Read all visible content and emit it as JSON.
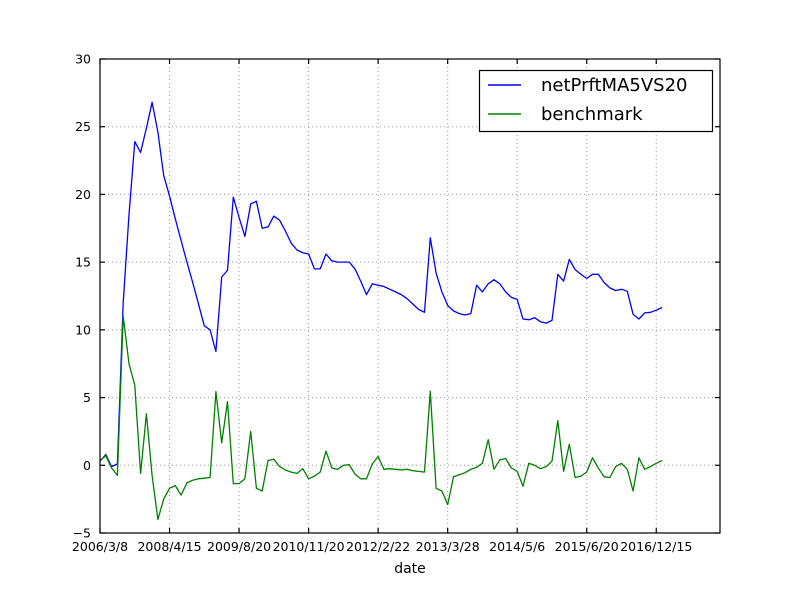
{
  "figure": {
    "background": "#ffffff",
    "axes_background": "#ffffff",
    "axis_color": "#000000",
    "grid_color": "#9a9a9a"
  },
  "chart_data": {
    "type": "line",
    "title": "",
    "xlabel": "date",
    "ylabel": "",
    "grid": true,
    "legend_position": "upper right",
    "xlim": [
      0,
      107
    ],
    "ylim": [
      -5,
      30
    ],
    "yticks": [
      -5,
      0,
      5,
      10,
      15,
      20,
      25,
      30
    ],
    "ytick_labels": [
      "−5",
      "0",
      "5",
      "10",
      "15",
      "20",
      "25",
      "30"
    ],
    "xtick_positions": [
      0,
      12,
      24,
      36,
      48,
      60,
      72,
      84,
      96
    ],
    "xtick_labels": [
      "2006/3/8",
      "2008/4/15",
      "2009/8/20",
      "2010/11/20",
      "2012/2/22",
      "2013/3/28",
      "2014/5/6",
      "2015/6/20",
      "2016/12/15"
    ],
    "series": [
      {
        "name": "netPrftMA5VS20",
        "color": "#0000ff",
        "values": [
          0.3,
          0.8,
          -0.1,
          0.1,
          12.0,
          18.5,
          23.9,
          23.1,
          24.9,
          26.8,
          24.6,
          21.4,
          19.9,
          18.2,
          16.6,
          15.0,
          13.5,
          11.9,
          10.3,
          10.0,
          8.4,
          13.9,
          14.4,
          19.8,
          18.3,
          16.9,
          19.3,
          19.5,
          17.5,
          17.6,
          18.4,
          18.1,
          17.3,
          16.4,
          15.9,
          15.7,
          15.6,
          14.5,
          14.5,
          15.6,
          15.1,
          15.0,
          15.0,
          15.0,
          14.5,
          13.6,
          12.6,
          13.4,
          13.3,
          13.2,
          13.0,
          12.8,
          12.6,
          12.3,
          11.9,
          11.5,
          11.3,
          16.8,
          14.2,
          12.8,
          11.8,
          11.4,
          11.2,
          11.1,
          11.2,
          13.3,
          12.8,
          13.4,
          13.7,
          13.4,
          12.8,
          12.4,
          12.25,
          10.8,
          10.75,
          10.9,
          10.6,
          10.5,
          10.7,
          14.1,
          13.6,
          15.2,
          14.45,
          14.1,
          13.8,
          14.1,
          14.1,
          13.5,
          13.1,
          12.9,
          13.0,
          12.85,
          11.15,
          10.8,
          11.25,
          11.3,
          11.45,
          11.65
        ]
      },
      {
        "name": "benchmark",
        "color": "#008000",
        "values": [
          0.35,
          0.7,
          -0.2,
          -0.75,
          11.0,
          7.5,
          5.9,
          -0.6,
          3.8,
          -0.75,
          -4.0,
          -2.5,
          -1.7,
          -1.5,
          -2.2,
          -1.3,
          -1.1,
          -1.0,
          -0.95,
          -0.9,
          5.45,
          1.65,
          4.7,
          -1.35,
          -1.35,
          -1.0,
          2.5,
          -1.7,
          -1.9,
          0.35,
          0.45,
          -0.1,
          -0.35,
          -0.5,
          -0.6,
          -0.25,
          -1.0,
          -0.8,
          -0.5,
          1.05,
          -0.2,
          -0.3,
          0.0,
          0.05,
          -0.65,
          -1.0,
          -1.0,
          0.1,
          0.65,
          -0.3,
          -0.25,
          -0.3,
          -0.35,
          -0.3,
          -0.4,
          -0.45,
          -0.5,
          5.46,
          -1.7,
          -1.9,
          -2.9,
          -0.85,
          -0.7,
          -0.55,
          -0.3,
          -0.15,
          0.15,
          1.9,
          -0.3,
          0.4,
          0.5,
          -0.2,
          -0.45,
          -1.55,
          0.15,
          0.0,
          -0.25,
          -0.1,
          0.3,
          3.3,
          -0.45,
          1.55,
          -0.9,
          -0.8,
          -0.5,
          0.55,
          -0.2,
          -0.85,
          -0.9,
          -0.1,
          0.15,
          -0.3,
          -1.9,
          0.55,
          -0.3,
          -0.1,
          0.15,
          0.35
        ]
      }
    ]
  }
}
